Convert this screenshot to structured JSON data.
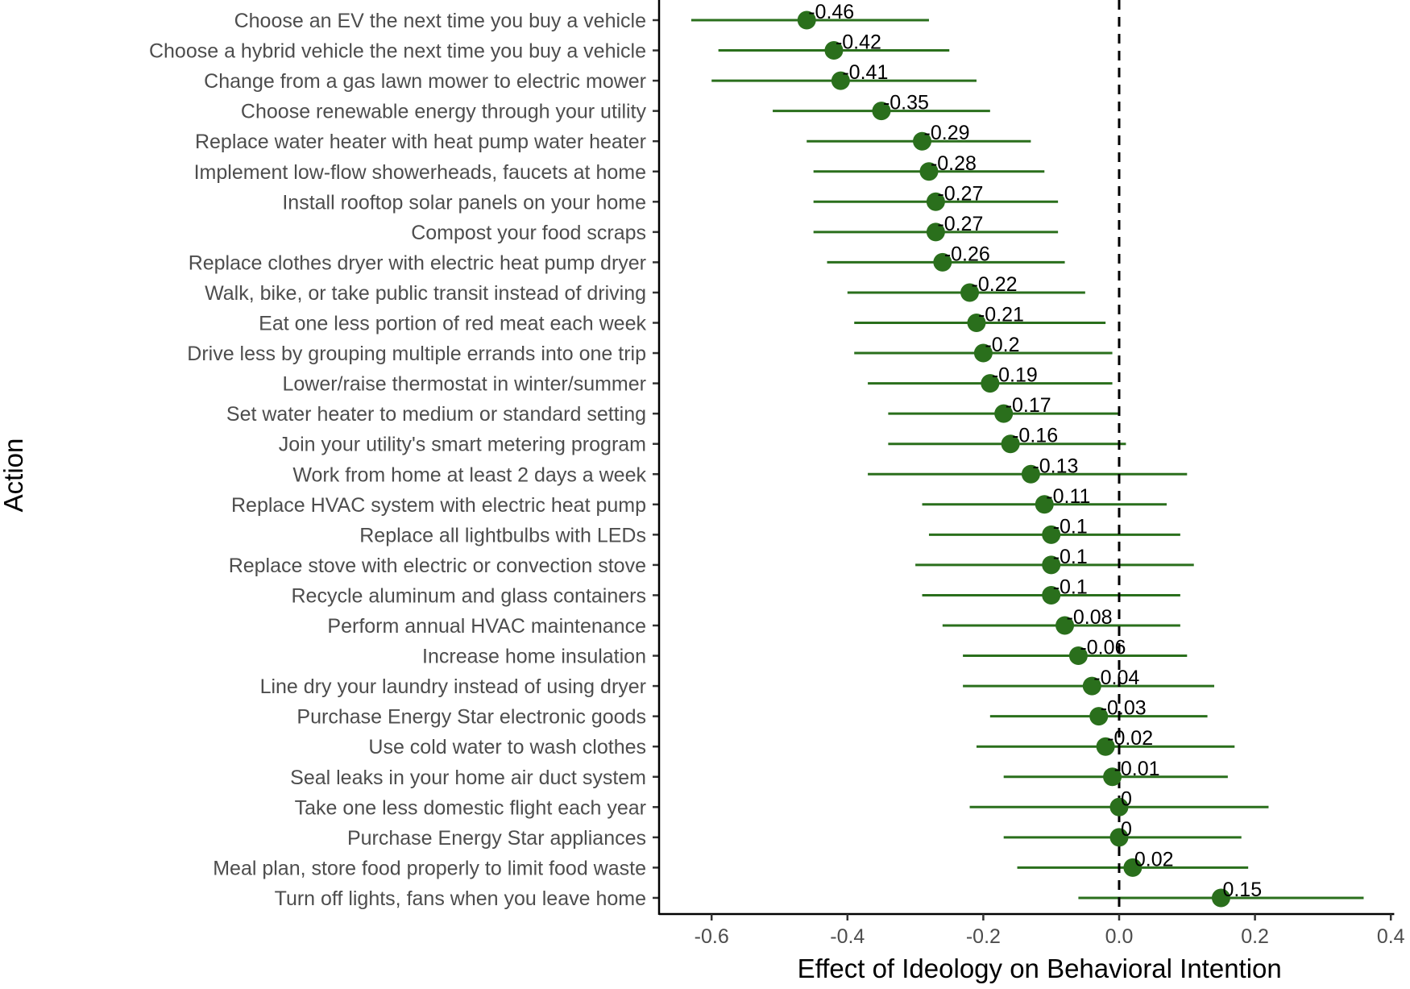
{
  "chart_data": {
    "type": "scatter",
    "subtype": "dot-and-whisker",
    "xlabel": "Effect of Ideology on Behavioral Intention",
    "ylabel": "Action",
    "xlim": [
      -0.67,
      0.405
    ],
    "xticks": [
      -0.6,
      -0.4,
      -0.2,
      0.0,
      0.2,
      0.4
    ],
    "xtick_labels": [
      "-0.6",
      "-0.4",
      "-0.2",
      "0.0",
      "0.2",
      "0.4"
    ],
    "reference_line_x": 0,
    "grid": false,
    "colors": {
      "point": "#2a6f1c",
      "interval": "#2a6f1c",
      "reference_line": "#000000",
      "axis": "#000000"
    },
    "actions": [
      {
        "label": "Choose an EV the next time you buy a vehicle",
        "estimate": -0.46,
        "value_label": "-0.46",
        "low": -0.63,
        "high": -0.28
      },
      {
        "label": "Choose a hybrid vehicle the next time you buy a vehicle",
        "estimate": -0.42,
        "value_label": "-0.42",
        "low": -0.59,
        "high": -0.25
      },
      {
        "label": "Change from a gas lawn mower to electric mower",
        "estimate": -0.41,
        "value_label": "-0.41",
        "low": -0.6,
        "high": -0.21
      },
      {
        "label": "Choose renewable energy through your utility",
        "estimate": -0.35,
        "value_label": "-0.35",
        "low": -0.51,
        "high": -0.19
      },
      {
        "label": "Replace water heater with heat pump water heater",
        "estimate": -0.29,
        "value_label": "-0.29",
        "low": -0.46,
        "high": -0.13
      },
      {
        "label": "Implement low-flow showerheads, faucets at home",
        "estimate": -0.28,
        "value_label": "-0.28",
        "low": -0.45,
        "high": -0.11
      },
      {
        "label": "Install rooftop solar panels on your home",
        "estimate": -0.27,
        "value_label": "-0.27",
        "low": -0.45,
        "high": -0.09
      },
      {
        "label": "Compost your food scraps",
        "estimate": -0.27,
        "value_label": "-0.27",
        "low": -0.45,
        "high": -0.09
      },
      {
        "label": "Replace clothes dryer with electric heat pump dryer",
        "estimate": -0.26,
        "value_label": "-0.26",
        "low": -0.43,
        "high": -0.08
      },
      {
        "label": "Walk, bike, or take public transit instead of driving",
        "estimate": -0.22,
        "value_label": "-0.22",
        "low": -0.4,
        "high": -0.05
      },
      {
        "label": "Eat one less portion of red meat each week",
        "estimate": -0.21,
        "value_label": "-0.21",
        "low": -0.39,
        "high": -0.02
      },
      {
        "label": "Drive less by grouping multiple errands into one trip",
        "estimate": -0.2,
        "value_label": "-0.2",
        "low": -0.39,
        "high": -0.01
      },
      {
        "label": "Lower/raise thermostat in winter/summer",
        "estimate": -0.19,
        "value_label": "-0.19",
        "low": -0.37,
        "high": -0.01
      },
      {
        "label": "Set water heater to medium or standard setting",
        "estimate": -0.17,
        "value_label": "-0.17",
        "low": -0.34,
        "high": 0.0
      },
      {
        "label": "Join your utility's smart metering program",
        "estimate": -0.16,
        "value_label": "-0.16",
        "low": -0.34,
        "high": 0.01
      },
      {
        "label": "Work from home at least 2 days a week",
        "estimate": -0.13,
        "value_label": "-0.13",
        "low": -0.37,
        "high": 0.1
      },
      {
        "label": "Replace HVAC system with electric heat pump",
        "estimate": -0.11,
        "value_label": "-0.11",
        "low": -0.29,
        "high": 0.07
      },
      {
        "label": "Replace all lightbulbs with LEDs",
        "estimate": -0.1,
        "value_label": "-0.1",
        "low": -0.28,
        "high": 0.09
      },
      {
        "label": "Replace stove with electric or convection stove",
        "estimate": -0.1,
        "value_label": "-0.1",
        "low": -0.3,
        "high": 0.11
      },
      {
        "label": "Recycle aluminum and glass containers",
        "estimate": -0.1,
        "value_label": "-0.1",
        "low": -0.29,
        "high": 0.09
      },
      {
        "label": "Perform annual HVAC maintenance",
        "estimate": -0.08,
        "value_label": "-0.08",
        "low": -0.26,
        "high": 0.09
      },
      {
        "label": "Increase home insulation",
        "estimate": -0.06,
        "value_label": "-0.06",
        "low": -0.23,
        "high": 0.1
      },
      {
        "label": "Line dry your laundry instead of using dryer",
        "estimate": -0.04,
        "value_label": "-0.04",
        "low": -0.23,
        "high": 0.14
      },
      {
        "label": "Purchase Energy Star electronic goods",
        "estimate": -0.03,
        "value_label": "-0.03",
        "low": -0.19,
        "high": 0.13
      },
      {
        "label": "Use cold water to wash clothes",
        "estimate": -0.02,
        "value_label": "-0.02",
        "low": -0.21,
        "high": 0.17
      },
      {
        "label": "Seal leaks in your home air duct system",
        "estimate": -0.01,
        "value_label": "-0.01",
        "low": -0.17,
        "high": 0.16
      },
      {
        "label": "Take one less domestic flight each year",
        "estimate": 0.0,
        "value_label": "0",
        "low": -0.22,
        "high": 0.22
      },
      {
        "label": "Purchase Energy Star appliances",
        "estimate": 0.0,
        "value_label": "0",
        "low": -0.17,
        "high": 0.18
      },
      {
        "label": "Meal plan, store food properly to limit food waste",
        "estimate": 0.02,
        "value_label": "0.02",
        "low": -0.15,
        "high": 0.19
      },
      {
        "label": "Turn off lights, fans when you leave home",
        "estimate": 0.15,
        "value_label": "0.15",
        "low": -0.06,
        "high": 0.36
      }
    ]
  }
}
